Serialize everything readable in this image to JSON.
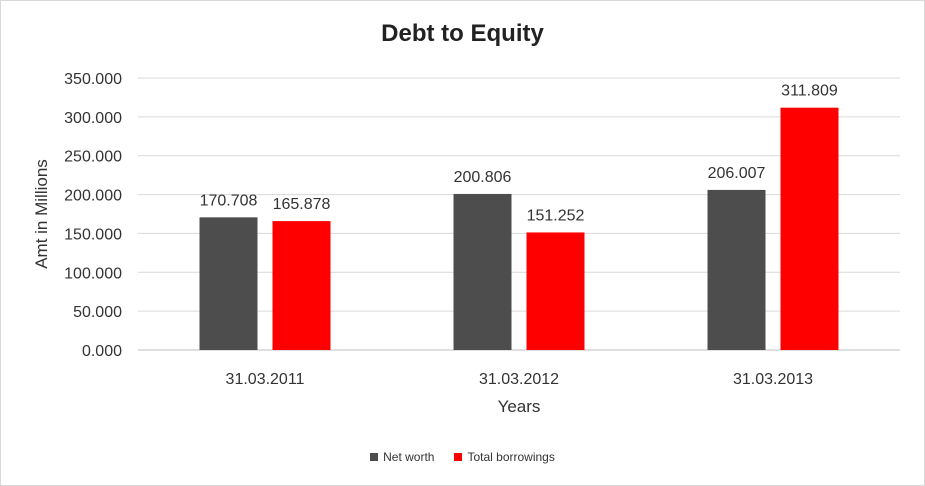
{
  "chart_data": {
    "type": "bar",
    "title": "Debt to Equity",
    "xlabel": "Years",
    "ylabel": "Amt in Millions",
    "categories": [
      "31.03.2011",
      "31.03.2012",
      "31.03.2013"
    ],
    "series": [
      {
        "name": "Net worth",
        "color": "#4d4d4d",
        "values": [
          170.708,
          200.806,
          206.007
        ],
        "labels": [
          "170.708",
          "200.806",
          "206.007"
        ]
      },
      {
        "name": "Total borrowings",
        "color": "#ff0000",
        "values": [
          165.878,
          151.252,
          311.809
        ],
        "labels": [
          "165.878",
          "151.252",
          "311.809"
        ]
      }
    ],
    "ylim": [
      0,
      350
    ],
    "yticks": [
      0,
      50,
      100,
      150,
      200,
      250,
      300,
      350
    ],
    "ytick_labels": [
      "0.000",
      "50.000",
      "100.000",
      "150.000",
      "200.000",
      "250.000",
      "300.000",
      "350.000"
    ],
    "grid": true,
    "legend_position": "bottom"
  }
}
